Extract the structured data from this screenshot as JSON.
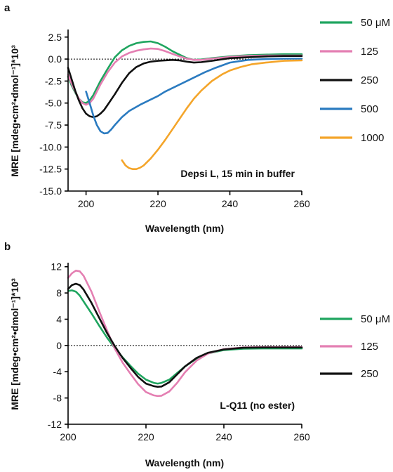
{
  "chart_data": [
    {
      "type": "line",
      "panel": "a",
      "xlabel": "Wavelength (nm)",
      "ylabel": "MRE [mdeg•cm²•dmol⁻¹]*10³",
      "xlim": [
        195,
        260
      ],
      "ylim": [
        -15.0,
        3.2
      ],
      "xticks": [
        200,
        220,
        240,
        260
      ],
      "yticks": [
        2.5,
        0.0,
        -2.5,
        -5.0,
        -7.5,
        -10.0,
        -12.5,
        -15.0
      ],
      "ytick_labels": [
        "2.5",
        "0.0",
        "-2.5",
        "-5.0",
        "-7.5",
        "-10.0",
        "-12.5",
        "-15.0"
      ],
      "zero_line": true,
      "annotation": "Depsi L, 15 min in buffer",
      "legend": "right",
      "series": [
        {
          "name": "50 μM",
          "color": "#1fa55f",
          "x": [
            195,
            196,
            197,
            198,
            199,
            200,
            201,
            202,
            203,
            204,
            206,
            208,
            210,
            212,
            214,
            216,
            218,
            220,
            222,
            224,
            226,
            228,
            230,
            232,
            235,
            240,
            245,
            250,
            255,
            260
          ],
          "y": [
            -2.0,
            -3.0,
            -3.8,
            -4.5,
            -4.9,
            -5.0,
            -4.7,
            -4.1,
            -3.3,
            -2.5,
            -1.1,
            0.2,
            1.0,
            1.5,
            1.8,
            1.95,
            2.0,
            1.8,
            1.4,
            0.9,
            0.5,
            0.1,
            -0.1,
            -0.05,
            0.1,
            0.3,
            0.45,
            0.5,
            0.55,
            0.55
          ]
        },
        {
          "name": "125",
          "color": "#e47fb2",
          "x": [
            195,
            196,
            197,
            198,
            199,
            200,
            201,
            202,
            203,
            204,
            206,
            208,
            210,
            212,
            214,
            216,
            218,
            220,
            222,
            224,
            226,
            228,
            230,
            232,
            235,
            240,
            245,
            250,
            255,
            260
          ],
          "y": [
            -1.8,
            -2.8,
            -3.7,
            -4.5,
            -5.0,
            -5.2,
            -5.0,
            -4.5,
            -3.7,
            -2.9,
            -1.5,
            -0.4,
            0.3,
            0.7,
            0.95,
            1.1,
            1.2,
            1.15,
            0.9,
            0.6,
            0.3,
            0.05,
            -0.1,
            -0.1,
            0.05,
            0.25,
            0.35,
            0.4,
            0.4,
            0.4
          ]
        },
        {
          "name": "250",
          "color": "#111111",
          "x": [
            195,
            196,
            197,
            198,
            199,
            200,
            201,
            202,
            203,
            204,
            205,
            206,
            208,
            210,
            212,
            214,
            216,
            218,
            220,
            222,
            224,
            226,
            228,
            230,
            232,
            235,
            240,
            245,
            250,
            255,
            260
          ],
          "y": [
            -1.0,
            -2.3,
            -3.6,
            -4.7,
            -5.6,
            -6.2,
            -6.5,
            -6.6,
            -6.5,
            -6.2,
            -5.8,
            -5.2,
            -4.0,
            -2.7,
            -1.6,
            -0.9,
            -0.5,
            -0.3,
            -0.2,
            -0.15,
            -0.1,
            -0.15,
            -0.3,
            -0.4,
            -0.35,
            -0.2,
            0.1,
            0.2,
            0.3,
            0.35,
            0.35
          ]
        },
        {
          "name": "500",
          "color": "#2b7bc0",
          "x": [
            200,
            201,
            202,
            203,
            204,
            205,
            206,
            207,
            208,
            210,
            212,
            215,
            218,
            220,
            222,
            225,
            228,
            230,
            233,
            236,
            240,
            245,
            250,
            255,
            260
          ],
          "y": [
            -3.7,
            -5.0,
            -6.4,
            -7.5,
            -8.2,
            -8.45,
            -8.4,
            -8.0,
            -7.5,
            -6.6,
            -5.9,
            -5.2,
            -4.6,
            -4.2,
            -3.7,
            -3.1,
            -2.5,
            -2.1,
            -1.5,
            -1.0,
            -0.4,
            -0.1,
            0.0,
            0.05,
            0.05
          ]
        },
        {
          "name": "1000",
          "color": "#f4a52a",
          "x": [
            210,
            211,
            212,
            213,
            214,
            215,
            216,
            218,
            220,
            222,
            224,
            226,
            228,
            230,
            232,
            235,
            238,
            240,
            243,
            246,
            250,
            255,
            260
          ],
          "y": [
            -11.5,
            -12.1,
            -12.4,
            -12.5,
            -12.5,
            -12.35,
            -12.1,
            -11.3,
            -10.3,
            -9.2,
            -8.0,
            -6.8,
            -5.6,
            -4.5,
            -3.6,
            -2.5,
            -1.7,
            -1.3,
            -0.9,
            -0.6,
            -0.4,
            -0.2,
            -0.15
          ]
        }
      ]
    },
    {
      "type": "line",
      "panel": "b",
      "xlabel": "Wavelength (nm)",
      "ylabel": "MRE [mdeg•cm²•dmol⁻¹]*10³",
      "xlim": [
        200,
        260
      ],
      "ylim": [
        -12,
        12.4
      ],
      "xticks": [
        200,
        220,
        240,
        260
      ],
      "yticks": [
        12,
        8,
        4,
        0,
        -4,
        -8,
        -12
      ],
      "ytick_labels": [
        "12",
        "8",
        "4",
        "0",
        "-4",
        "-8",
        "-12"
      ],
      "zero_line": true,
      "annotation": "L-Q11 (no ester)",
      "legend": "right",
      "series": [
        {
          "name": "50 μM",
          "color": "#1fa55f",
          "x": [
            200,
            201,
            202,
            203,
            204,
            206,
            208,
            210,
            212,
            214,
            216,
            218,
            220,
            222,
            223,
            224,
            226,
            228,
            230,
            233,
            236,
            240,
            245,
            250,
            255,
            260
          ],
          "y": [
            8.3,
            8.4,
            8.2,
            7.6,
            6.7,
            4.9,
            3.0,
            1.2,
            -0.4,
            -1.8,
            -3.1,
            -4.3,
            -5.2,
            -5.7,
            -5.8,
            -5.7,
            -5.2,
            -4.2,
            -3.2,
            -2.0,
            -1.2,
            -0.7,
            -0.5,
            -0.45,
            -0.45,
            -0.45
          ]
        },
        {
          "name": "125",
          "color": "#e47fb2",
          "x": [
            200,
            201,
            202,
            203,
            204,
            206,
            208,
            210,
            212,
            214,
            216,
            218,
            220,
            222,
            223,
            224,
            226,
            228,
            230,
            233,
            236,
            240,
            245,
            250,
            255,
            260
          ],
          "y": [
            10.3,
            11.0,
            11.4,
            11.3,
            10.6,
            8.2,
            5.2,
            2.3,
            -0.5,
            -2.6,
            -4.3,
            -5.9,
            -7.1,
            -7.6,
            -7.7,
            -7.65,
            -7.0,
            -5.7,
            -4.1,
            -2.3,
            -1.2,
            -0.55,
            -0.3,
            -0.25,
            -0.25,
            -0.25
          ]
        },
        {
          "name": "250",
          "color": "#111111",
          "x": [
            200,
            201,
            202,
            203,
            204,
            206,
            208,
            210,
            212,
            214,
            216,
            218,
            220,
            222,
            223,
            224,
            226,
            228,
            230,
            233,
            236,
            240,
            245,
            250,
            255,
            260
          ],
          "y": [
            8.6,
            9.2,
            9.4,
            9.2,
            8.5,
            6.5,
            4.2,
            1.9,
            -0.1,
            -1.9,
            -3.4,
            -4.8,
            -5.8,
            -6.2,
            -6.3,
            -6.25,
            -5.6,
            -4.4,
            -3.2,
            -1.9,
            -1.1,
            -0.6,
            -0.35,
            -0.3,
            -0.3,
            -0.3
          ]
        }
      ]
    }
  ]
}
